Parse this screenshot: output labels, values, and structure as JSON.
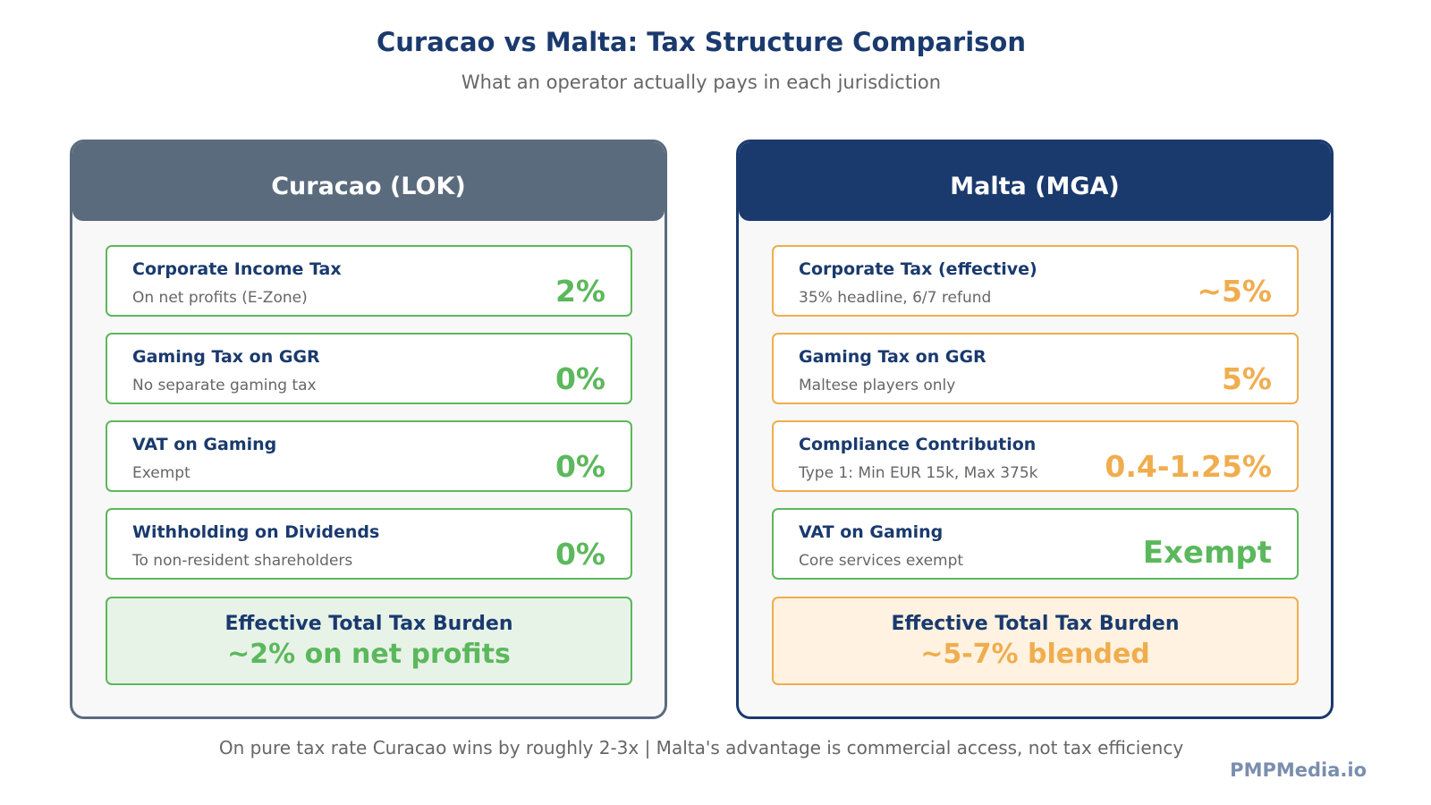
{
  "title": "Curacao vs Malta: Tax Structure Comparison",
  "subtitle": "What an operator actually pays in each jurisdiction",
  "colors": {
    "navy": "#1a3a6e",
    "slate": "#5b6b7e",
    "green": "#5cb85c",
    "orange": "#f0ad4e",
    "green_bg": "#e8f3e8",
    "orange_bg": "#fff2e0"
  },
  "panels": [
    {
      "header": "Curacao (LOK)",
      "rows": [
        {
          "title": "Corporate Income Tax",
          "sub": "On net profits (E-Zone)",
          "value": "2%",
          "status": "green"
        },
        {
          "title": "Gaming Tax on GGR",
          "sub": "No separate gaming tax",
          "value": "0%",
          "status": "green"
        },
        {
          "title": "VAT on Gaming",
          "sub": "Exempt",
          "value": "0%",
          "status": "green"
        },
        {
          "title": "Withholding on Dividends",
          "sub": "To non-resident shareholders",
          "value": "0%",
          "status": "green"
        }
      ],
      "summary": {
        "title": "Effective Total Tax Burden",
        "value": "~2% on net profits",
        "status": "green"
      }
    },
    {
      "header": "Malta (MGA)",
      "rows": [
        {
          "title": "Corporate Tax (effective)",
          "sub": "35% headline, 6/7 refund",
          "value": "~5%",
          "status": "orange"
        },
        {
          "title": "Gaming Tax on GGR",
          "sub": "Maltese players only",
          "value": "5%",
          "status": "orange"
        },
        {
          "title": "Compliance Contribution",
          "sub": "Type 1: Min EUR 15k, Max 375k",
          "value": "0.4-1.25%",
          "status": "orange"
        },
        {
          "title": "VAT on Gaming",
          "sub": "Core services exempt",
          "value": "Exempt",
          "status": "green"
        }
      ],
      "summary": {
        "title": "Effective Total Tax Burden",
        "value": "~5-7% blended",
        "status": "orange"
      }
    }
  ],
  "footer": "On pure tax rate Curacao wins by roughly 2-3x | Malta's advantage is commercial access, not tax efficiency",
  "brand": "PMPMedia.io"
}
